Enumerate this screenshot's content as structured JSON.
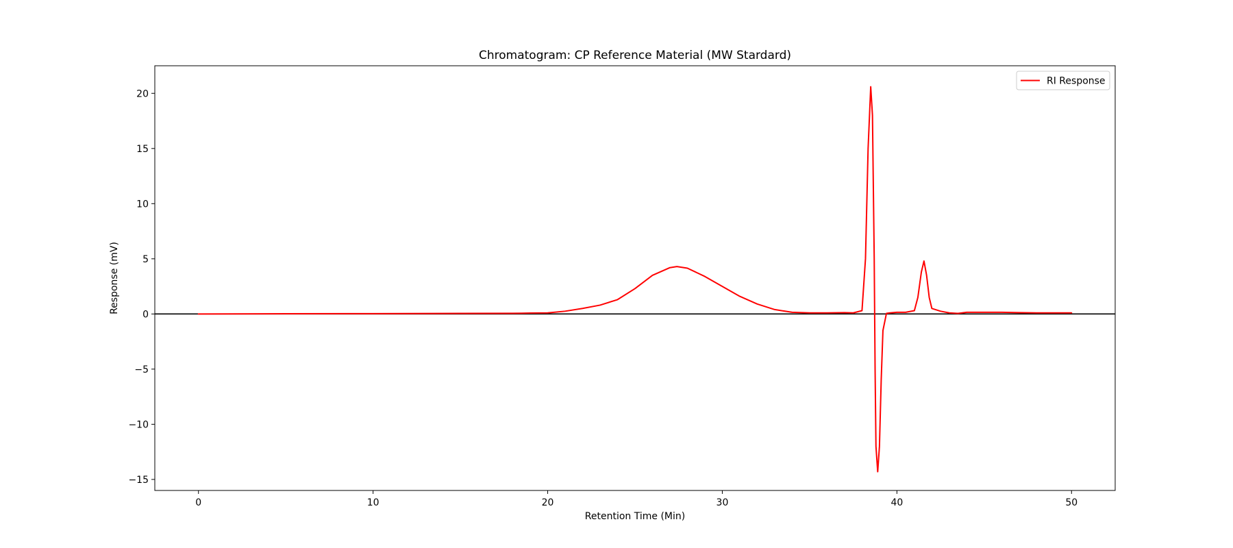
{
  "chart_data": {
    "type": "line",
    "title": "Chromatogram: CP Reference Material (MW Stardard)",
    "xlabel": "Retention Time (Min)",
    "ylabel": "Response (mV)",
    "xlim": [
      -2.5,
      52.5
    ],
    "ylim": [
      -16.0,
      22.5
    ],
    "x_ticks": [
      0,
      10,
      20,
      30,
      40,
      50
    ],
    "x_tick_labels": [
      "0",
      "10",
      "20",
      "30",
      "40",
      "50"
    ],
    "y_ticks": [
      -15,
      -10,
      -5,
      0,
      5,
      10,
      15,
      20
    ],
    "y_tick_labels": [
      "−15",
      "−10",
      "−5",
      "0",
      "5",
      "10",
      "15",
      "20"
    ],
    "grid": false,
    "legend_position": "top-right",
    "baseline": {
      "y": 0,
      "color": "#000000"
    },
    "series": [
      {
        "name": "RI Response",
        "color": "#ff0000",
        "x": [
          0,
          5,
          10,
          15,
          18,
          19,
          20,
          21,
          22,
          23,
          24,
          25,
          26,
          27,
          27.4,
          28,
          29,
          30,
          31,
          32,
          33,
          34,
          35,
          36,
          37,
          37.5,
          38,
          38.2,
          38.35,
          38.5,
          38.6,
          38.7,
          38.75,
          38.8,
          38.9,
          39.0,
          39.1,
          39.2,
          39.4,
          39.6,
          40,
          40.5,
          41,
          41.2,
          41.4,
          41.55,
          41.7,
          41.85,
          42,
          42.5,
          43,
          43.5,
          44,
          45,
          46,
          47,
          48,
          49,
          50
        ],
        "y": [
          0.0,
          0.02,
          0.03,
          0.05,
          0.06,
          0.08,
          0.1,
          0.25,
          0.5,
          0.8,
          1.3,
          2.3,
          3.5,
          4.2,
          4.3,
          4.15,
          3.4,
          2.5,
          1.6,
          0.9,
          0.4,
          0.15,
          0.1,
          0.1,
          0.12,
          0.1,
          0.3,
          5.0,
          15.0,
          20.6,
          18.0,
          5.0,
          -5.0,
          -12.0,
          -14.3,
          -12.0,
          -6.0,
          -1.5,
          0.05,
          0.1,
          0.15,
          0.15,
          0.3,
          1.5,
          3.8,
          4.8,
          3.5,
          1.5,
          0.5,
          0.25,
          0.1,
          0.05,
          0.15,
          0.15,
          0.15,
          0.12,
          0.1,
          0.1,
          0.1
        ]
      }
    ]
  }
}
